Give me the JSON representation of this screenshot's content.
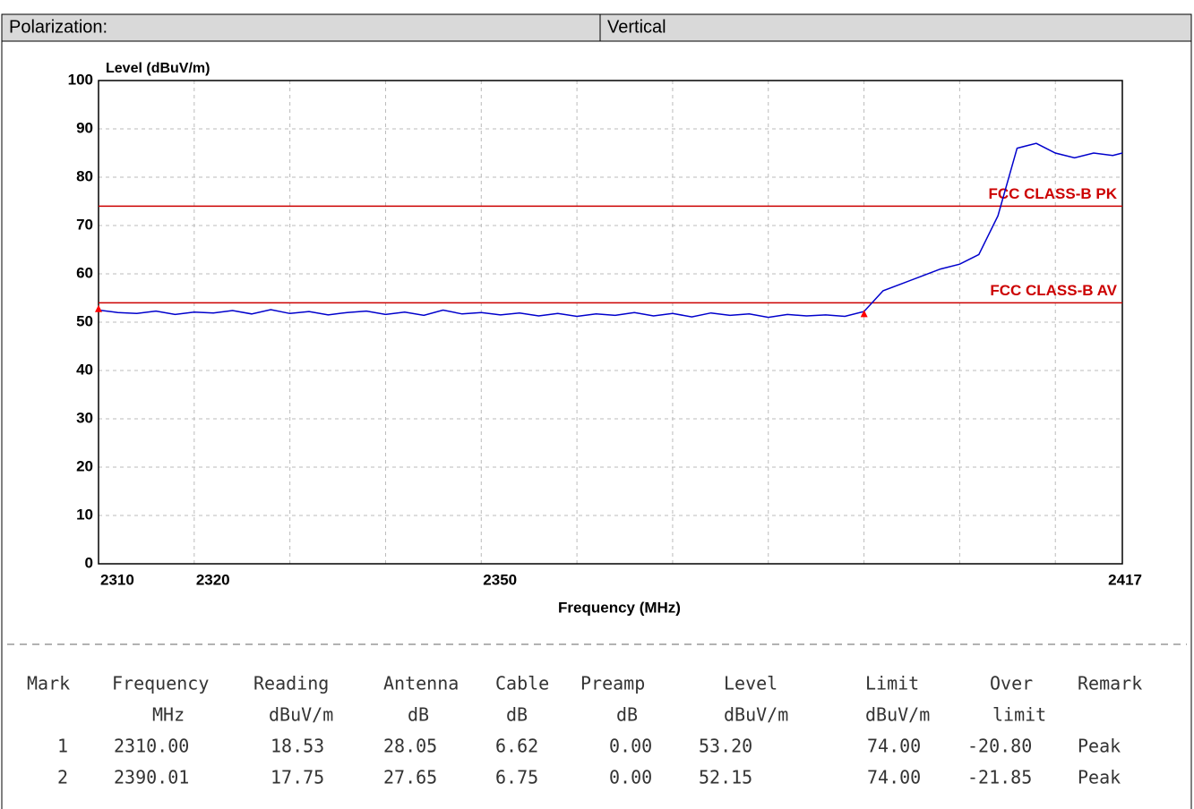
{
  "header": {
    "cells": [
      "Polarization:",
      "Vertical"
    ]
  },
  "chart_data": {
    "type": "line",
    "ylabel": "Level (dBuV/m)",
    "xlabel": "Frequency (MHz)",
    "xlim": [
      2310,
      2417
    ],
    "ylim": [
      0,
      100
    ],
    "xticks": [
      2310,
      2320,
      2350,
      2417
    ],
    "xgrid": [
      2320,
      2330,
      2340,
      2350,
      2360,
      2370,
      2380,
      2390,
      2400,
      2410
    ],
    "yticks": [
      0,
      10,
      20,
      30,
      40,
      50,
      60,
      70,
      80,
      90,
      100
    ],
    "grid": true,
    "series": [
      {
        "color": "#0000cc",
        "x": [
          2310,
          2312,
          2314,
          2316,
          2318,
          2320,
          2322,
          2324,
          2326,
          2328,
          2330,
          2332,
          2334,
          2336,
          2338,
          2340,
          2342,
          2344,
          2346,
          2348,
          2350,
          2352,
          2354,
          2356,
          2358,
          2360,
          2362,
          2364,
          2366,
          2368,
          2370,
          2372,
          2374,
          2376,
          2378,
          2380,
          2382,
          2384,
          2386,
          2388,
          2390,
          2392,
          2394,
          2396,
          2398,
          2400,
          2402,
          2404,
          2406,
          2408,
          2410,
          2412,
          2414,
          2416,
          2417
        ],
        "values": [
          52.5,
          52.0,
          51.8,
          52.3,
          51.6,
          52.1,
          51.9,
          52.4,
          51.7,
          52.6,
          51.8,
          52.2,
          51.5,
          52.0,
          52.3,
          51.6,
          52.1,
          51.4,
          52.5,
          51.7,
          52.0,
          51.5,
          51.9,
          51.3,
          51.8,
          51.2,
          51.7,
          51.4,
          52.0,
          51.3,
          51.8,
          51.1,
          51.9,
          51.4,
          51.7,
          51.0,
          51.6,
          51.3,
          51.5,
          51.2,
          52.2,
          56.5,
          58.0,
          59.5,
          61.0,
          62.0,
          64.0,
          72.0,
          86.0,
          87.0,
          85.0,
          84.0,
          85.0,
          84.5,
          85.0
        ]
      }
    ],
    "limits": [
      {
        "name": "FCC CLASS-B PK",
        "value": 74,
        "color": "#cc0000"
      },
      {
        "name": "FCC CLASS-B AV",
        "value": 54,
        "color": "#cc0000"
      }
    ],
    "marker_color": "#ff0000"
  },
  "table": {
    "header": [
      [
        "Mark",
        "Frequency",
        "Reading",
        "Antenna",
        "Cable",
        "Preamp",
        "Level",
        "Limit",
        "Over",
        "Remark"
      ],
      [
        "",
        "MHz",
        "dBuV/m",
        "dB",
        "dB",
        "dB",
        "dBuV/m",
        "dBuV/m",
        "limit",
        ""
      ]
    ],
    "rows": [
      [
        "1",
        "2310.00",
        "18.53",
        "28.05",
        "6.62",
        "0.00",
        "53.20",
        "74.00",
        "-20.80",
        "Peak"
      ],
      [
        "2",
        "2390.01",
        "17.75",
        "27.65",
        "6.75",
        "0.00",
        "52.15",
        "74.00",
        "-21.85",
        "Peak"
      ]
    ]
  }
}
